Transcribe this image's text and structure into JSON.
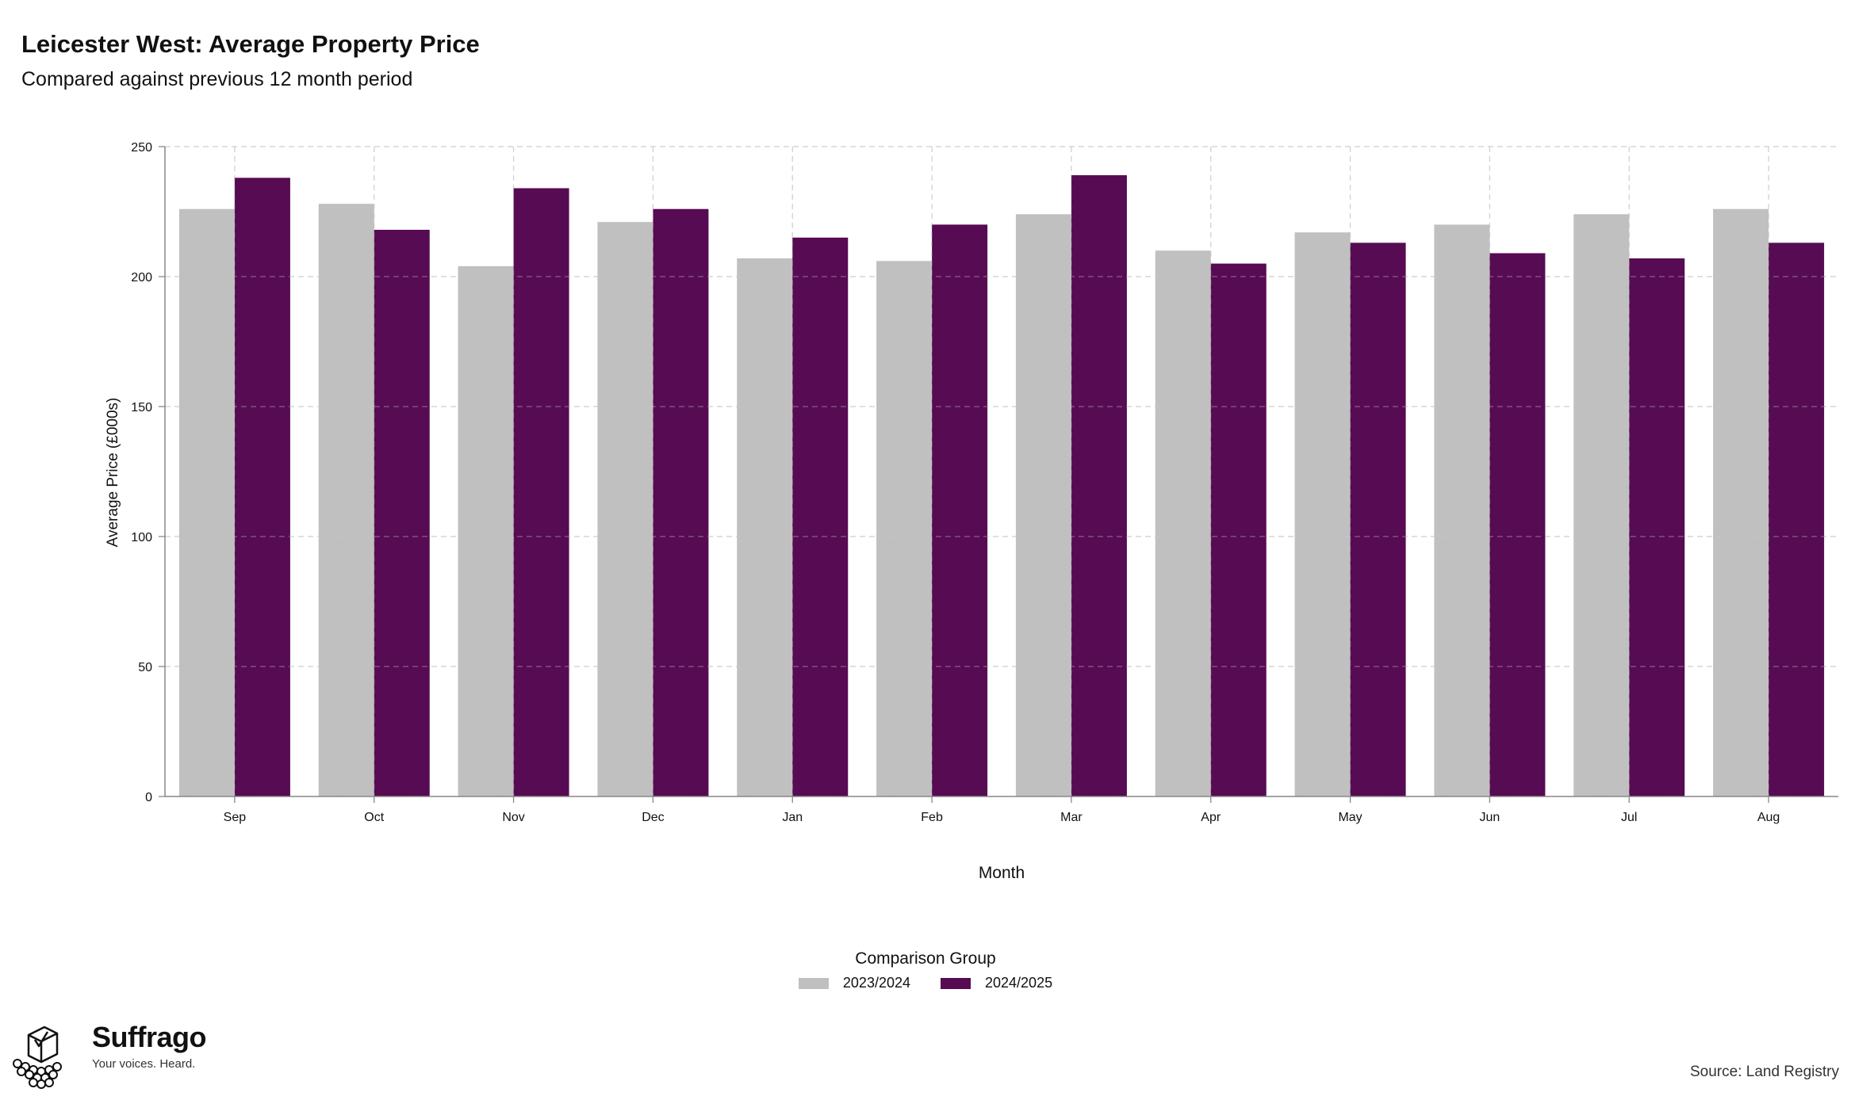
{
  "chart_data": {
    "type": "bar",
    "title": "Leicester West: Average Property Price",
    "subtitle": "Compared against previous 12 month period",
    "xlabel": "Month",
    "ylabel": "Average Price (£000s)",
    "ylim": [
      0,
      250
    ],
    "yticks": [
      0,
      50,
      100,
      150,
      200,
      250
    ],
    "grid": true,
    "legend_position": "bottom",
    "legend_title": "Comparison Group",
    "categories": [
      "Sep",
      "Oct",
      "Nov",
      "Dec",
      "Jan",
      "Feb",
      "Mar",
      "Apr",
      "May",
      "Jun",
      "Jul",
      "Aug"
    ],
    "series": [
      {
        "name": "2023/2024",
        "color": "#c0c0c0",
        "values": [
          226,
          228,
          204,
          221,
          207,
          206,
          224,
          210,
          217,
          220,
          224,
          226
        ]
      },
      {
        "name": "2024/2025",
        "color": "#560b52",
        "values": [
          238,
          218,
          234,
          226,
          215,
          220,
          239,
          205,
          213,
          209,
          207,
          213
        ]
      }
    ]
  },
  "branding": {
    "logo_name": "Suffrago",
    "logo_tagline": "Your voices. Heard.",
    "logo_icon": "ballot-box-icon"
  },
  "source": "Source: Land Registry"
}
